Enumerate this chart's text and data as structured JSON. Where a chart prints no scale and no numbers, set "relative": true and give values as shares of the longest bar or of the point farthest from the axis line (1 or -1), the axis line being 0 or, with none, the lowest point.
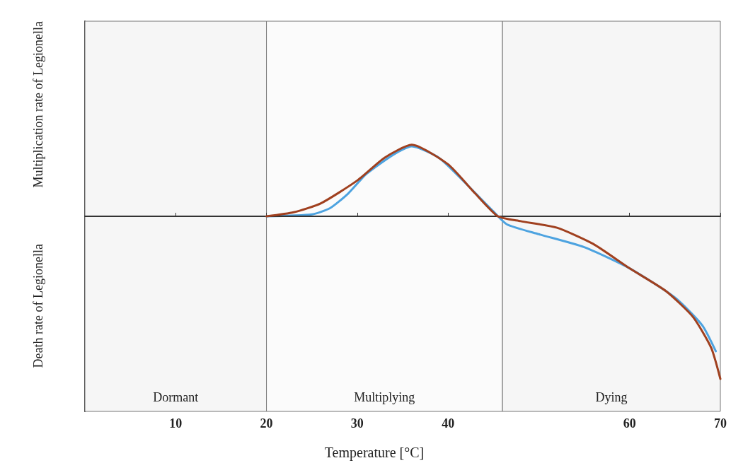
{
  "chart_data": {
    "type": "line",
    "relative": true,
    "xlabel": "Temperature [°C]",
    "ylabel": "Multiplication rate of Legionella",
    "annotations": [
      "Death rate of Legionella"
    ],
    "xlim": [
      0,
      70
    ],
    "xticks": [
      10,
      20,
      30,
      40,
      60,
      70
    ],
    "marker": "none",
    "line_style": "solid",
    "grid": false,
    "series": [
      {
        "color": "#a0401f",
        "x": [
          20,
          23,
          26,
          30,
          33,
          36,
          40,
          43,
          45.5,
          48,
          52,
          56,
          60,
          64,
          67,
          69,
          70
        ],
        "values": [
          0,
          0.025,
          0.08,
          0.22,
          0.36,
          0.44,
          0.32,
          0.14,
          0,
          -0.03,
          -0.07,
          -0.17,
          -0.32,
          -0.46,
          -0.62,
          -0.81,
          -1
        ]
      },
      {
        "color": "#4da3e0",
        "x": [
          20,
          25,
          27,
          29,
          31,
          34,
          36,
          39,
          42,
          45,
          46.5,
          50,
          55,
          60,
          65,
          68,
          69.5
        ],
        "values": [
          0,
          0.012,
          0.05,
          0.14,
          0.26,
          0.38,
          0.43,
          0.36,
          0.2,
          0.03,
          -0.05,
          -0.11,
          -0.19,
          -0.32,
          -0.5,
          -0.67,
          -0.83
        ]
      }
    ],
    "bands": [
      {
        "axis": "x",
        "from": 0,
        "to": 20,
        "label": "Dormant",
        "color": "#f6f6f6"
      },
      {
        "axis": "x",
        "from": 20,
        "to": 46,
        "label": "Multiplying",
        "color": "#fbfbfb"
      },
      {
        "axis": "x",
        "from": 46,
        "to": 70,
        "label": "Dying",
        "color": "#f6f6f6"
      }
    ]
  }
}
